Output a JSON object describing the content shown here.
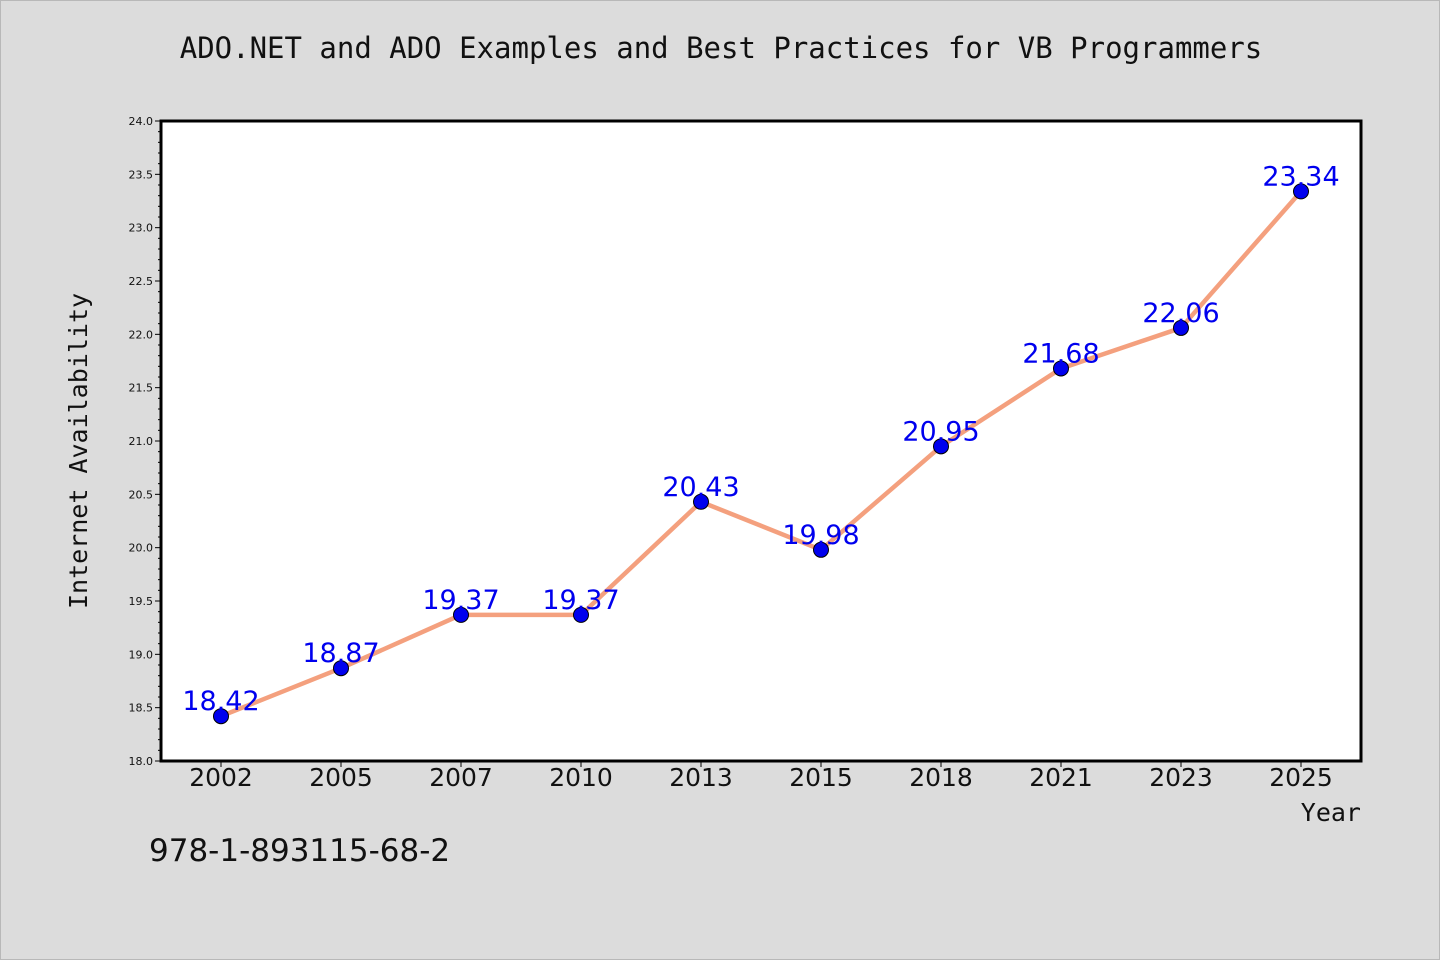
{
  "chart_data": {
    "type": "line",
    "title": "ADO.NET and ADO Examples and Best Practices for VB Programmers",
    "xlabel": "Year",
    "ylabel": "Internet Availability",
    "categories": [
      "2002",
      "2005",
      "2007",
      "2010",
      "2013",
      "2015",
      "2018",
      "2021",
      "2023",
      "2025"
    ],
    "series": [
      {
        "values": [
          18.42,
          18.87,
          19.37,
          19.37,
          20.43,
          19.98,
          20.95,
          21.68,
          22.06,
          23.34
        ],
        "labels": [
          "18.42",
          "18.87",
          "19.37",
          "19.37",
          "20.43",
          "19.98",
          "20.95",
          "21.68",
          "22.06",
          "23.34"
        ]
      }
    ],
    "ylim": [
      18.0,
      24.0
    ],
    "y_ticks": [
      "18.0",
      "18.5",
      "19.0",
      "19.5",
      "20.0",
      "20.5",
      "21.0",
      "21.5",
      "22.0",
      "22.5",
      "23.0",
      "23.5",
      "24.0"
    ],
    "grid": false,
    "legend": "none",
    "colors": {
      "line": "#f4a07e",
      "marker": "#0000ee",
      "label": "#0000ee",
      "plot_background": "#ffffff",
      "figure_background": "#dcdcdc"
    }
  },
  "footer": {
    "isbn": "978-1-893115-68-2"
  }
}
